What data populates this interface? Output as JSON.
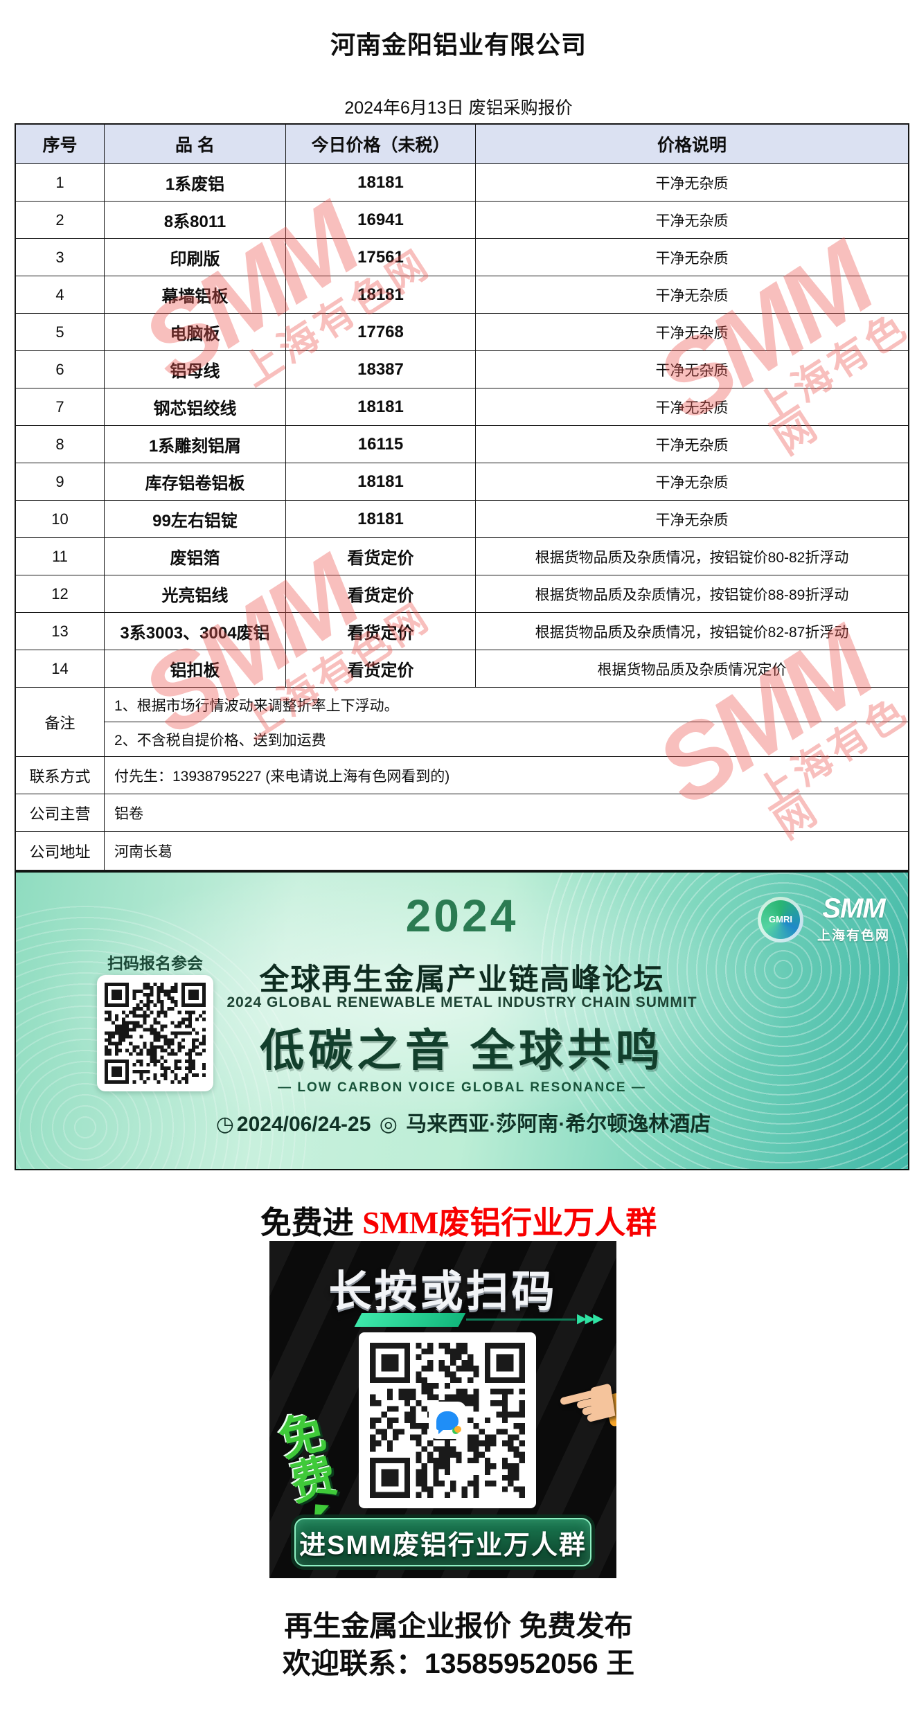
{
  "page": {
    "title": "河南金阳铝业有限公司",
    "subtitle": "2024年6月13日 废铝采购报价"
  },
  "table": {
    "headers": {
      "no": "序号",
      "name": "品 名",
      "price": "今日价格（未税）",
      "note": "价格说明"
    },
    "rows": [
      {
        "no": "1",
        "name": "1系废铝",
        "price": "18181",
        "note": "干净无杂质"
      },
      {
        "no": "2",
        "name": "8系8011",
        "price": "16941",
        "note": "干净无杂质"
      },
      {
        "no": "3",
        "name": "印刷版",
        "price": "17561",
        "note": "干净无杂质"
      },
      {
        "no": "4",
        "name": "幕墙铝板",
        "price": "18181",
        "note": "干净无杂质"
      },
      {
        "no": "5",
        "name": "电脑板",
        "price": "17768",
        "note": "干净无杂质"
      },
      {
        "no": "6",
        "name": "铝母线",
        "price": "18387",
        "note": "干净无杂质"
      },
      {
        "no": "7",
        "name": "钢芯铝绞线",
        "price": "18181",
        "note": "干净无杂质"
      },
      {
        "no": "8",
        "name": "1系雕刻铝屑",
        "price": "16115",
        "note": "干净无杂质"
      },
      {
        "no": "9",
        "name": "库存铝卷铝板",
        "price": "18181",
        "note": "干净无杂质"
      },
      {
        "no": "10",
        "name": "99左右铝锭",
        "price": "18181",
        "note": "干净无杂质"
      },
      {
        "no": "11",
        "name": "废铝箔",
        "price": "看货定价",
        "note": "根据货物品质及杂质情况，按铝锭价80-82折浮动"
      },
      {
        "no": "12",
        "name": "光亮铝线",
        "price": "看货定价",
        "note": "根据货物品质及杂质情况，按铝锭价88-89折浮动"
      },
      {
        "no": "13",
        "name": "3系3003、3004废铝",
        "price": "看货定价",
        "note": "根据货物品质及杂质情况，按铝锭价82-87折浮动"
      },
      {
        "no": "14",
        "name": "铝扣板",
        "price": "看货定价",
        "note": "根据货物品质及杂质情况定价"
      }
    ],
    "remark_label": "备注",
    "remarks": [
      "1、根据市场行情波动来调整折率上下浮动。",
      "2、不含税自提价格、送到加运费"
    ],
    "contact_label": "联系方式",
    "contact_value": "付先生：13938795227 (来电请说上海有色网看到的)",
    "business_label": "公司主营",
    "business_value": "铝卷",
    "address_label": "公司地址",
    "address_value": "河南长葛"
  },
  "watermark": {
    "line1": "SMM",
    "line2": "上海有色网"
  },
  "banner": {
    "year": "2024",
    "gmri_label": "GMRI",
    "smm": "SMM",
    "smm_cn": "上海有色网",
    "scan_label": "扫码报名参会",
    "title_cn": "全球再生金属产业链高峰论坛",
    "title_en": "2024 GLOBAL RENEWABLE METAL INDUSTRY CHAIN SUMMIT",
    "slogan": "低碳之音 全球共鸣",
    "slogan_en": "— LOW CARBON VOICE GLOBAL RESONANCE —",
    "clock_icon": "◷",
    "date": "2024/06/24-25",
    "pin_icon": "◎",
    "venue": "马来西亚·莎阿南·希尔顿逸林酒店"
  },
  "promo": {
    "prefix": "免费进 ",
    "highlight": "SMM废铝行业万人群",
    "card_title": "长按或扫码",
    "free_char1": "免",
    "free_char2": "费",
    "arrows": "▶▶▶",
    "button_label": "进SMM废铝行业万人群"
  },
  "footer": {
    "line1": "再生金属企业报价 免费发布",
    "line2": "欢迎联系：13585952056 王"
  },
  "colors": {
    "header_bg": "#dbe1f2",
    "table_border": "#161616",
    "watermark_red": "#ec5852",
    "promo_red": "#f80000",
    "banner_green_dark": "#2b7b52",
    "button_green": "#0f5132",
    "accent_teal": "#2fe3a3"
  }
}
